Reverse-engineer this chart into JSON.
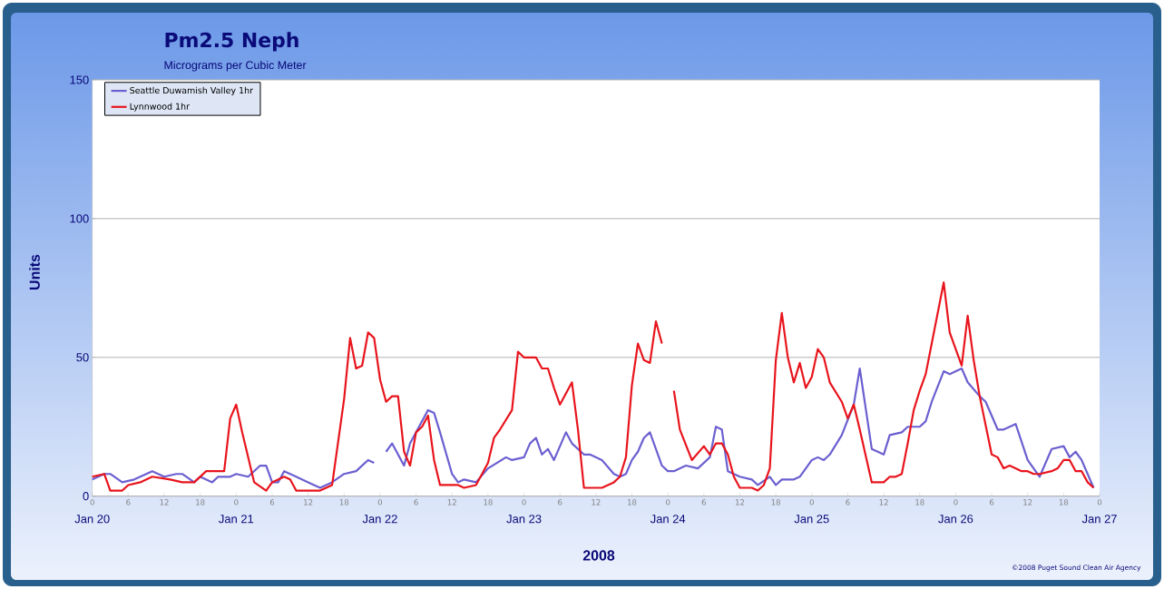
{
  "chart_data": {
    "type": "line",
    "title": "Pm2.5 Neph",
    "subtitle": "Micrograms per Cubic Meter",
    "xlabel": "2008",
    "ylabel": "Units",
    "annotations": [
      "©2008 Puget Sound Clean Air Agency",
      "Jan 20",
      "Jan 21",
      "Jan 22",
      "Jan 23",
      "Jan 24",
      "Jan 25",
      "Jan 26",
      "Jan 27"
    ],
    "xlim": [
      "2008-01-20T00:00",
      "2008-01-27T00:00"
    ],
    "ylim": [
      0,
      150
    ],
    "yticks": [
      0,
      50,
      100,
      150
    ],
    "xticks": [
      {
        "value": "2008-01-20T00:00",
        "label": "0"
      },
      {
        "value": "2008-01-20T06:00",
        "label": "6"
      },
      {
        "value": "2008-01-20T12:00",
        "label": "12"
      },
      {
        "value": "2008-01-20T18:00",
        "label": "18"
      },
      {
        "value": "2008-01-21T00:00",
        "label": "0"
      },
      {
        "value": "2008-01-21T06:00",
        "label": "6"
      },
      {
        "value": "2008-01-21T12:00",
        "label": "12"
      },
      {
        "value": "2008-01-21T18:00",
        "label": "18"
      },
      {
        "value": "2008-01-22T00:00",
        "label": "0"
      },
      {
        "value": "2008-01-22T06:00",
        "label": "6"
      },
      {
        "value": "2008-01-22T12:00",
        "label": "12"
      },
      {
        "value": "2008-01-22T18:00",
        "label": "18"
      },
      {
        "value": "2008-01-23T00:00",
        "label": "0"
      },
      {
        "value": "2008-01-23T06:00",
        "label": "6"
      },
      {
        "value": "2008-01-23T12:00",
        "label": "12"
      },
      {
        "value": "2008-01-23T18:00",
        "label": "18"
      },
      {
        "value": "2008-01-24T00:00",
        "label": "0"
      },
      {
        "value": "2008-01-24T06:00",
        "label": "6"
      },
      {
        "value": "2008-01-24T12:00",
        "label": "12"
      },
      {
        "value": "2008-01-24T18:00",
        "label": "18"
      },
      {
        "value": "2008-01-25T00:00",
        "label": "0"
      },
      {
        "value": "2008-01-25T06:00",
        "label": "6"
      },
      {
        "value": "2008-01-25T12:00",
        "label": "12"
      },
      {
        "value": "2008-01-25T18:00",
        "label": "18"
      },
      {
        "value": "2008-01-26T00:00",
        "label": "0"
      },
      {
        "value": "2008-01-26T06:00",
        "label": "6"
      },
      {
        "value": "2008-01-26T12:00",
        "label": "12"
      },
      {
        "value": "2008-01-26T18:00",
        "label": "18"
      },
      {
        "value": "2008-01-27T00:00",
        "label": "0"
      }
    ],
    "grid": "y",
    "legend": "top left",
    "series": [
      {
        "name": "Seattle Duwamish Valley  1hr",
        "color": "#6b5fd0",
        "x": [
          "2008-01-20T00:00",
          "2008-01-20T02:00",
          "2008-01-20T03:00",
          "2008-01-20T05:00",
          "2008-01-20T07:00",
          "2008-01-20T10:00",
          "2008-01-20T12:00",
          "2008-01-20T14:00",
          "2008-01-20T15:00",
          "2008-01-20T17:00",
          "2008-01-20T18:00",
          "2008-01-20T20:00",
          "2008-01-20T21:00",
          "2008-01-20T23:00",
          "2008-01-21T00:00",
          "2008-01-21T02:00",
          "2008-01-21T04:00",
          "2008-01-21T05:00",
          "2008-01-21T06:00",
          "2008-01-21T07:00",
          "2008-01-21T08:00",
          "2008-01-21T10:00",
          "2008-01-21T12:00",
          "2008-01-21T14:00",
          "2008-01-21T16:00",
          "2008-01-21T18:00",
          "2008-01-21T20:00",
          "2008-01-21T22:00",
          "2008-01-21T23:00",
          "2008-01-22T00:00",
          "2008-01-22T01:00",
          "2008-01-22T02:00",
          "2008-01-22T04:00",
          "2008-01-22T05:00",
          "2008-01-22T06:00",
          "2008-01-22T08:00",
          "2008-01-22T09:00",
          "2008-01-22T10:00",
          "2008-01-22T12:00",
          "2008-01-22T13:00",
          "2008-01-22T14:00",
          "2008-01-22T16:00",
          "2008-01-22T18:00",
          "2008-01-22T21:00",
          "2008-01-22T22:00",
          "2008-01-23T00:00",
          "2008-01-23T01:00",
          "2008-01-23T02:00",
          "2008-01-23T03:00",
          "2008-01-23T04:00",
          "2008-01-23T05:00",
          "2008-01-23T07:00",
          "2008-01-23T08:00",
          "2008-01-23T10:00",
          "2008-01-23T11:00",
          "2008-01-23T13:00",
          "2008-01-23T15:00",
          "2008-01-23T16:00",
          "2008-01-23T17:00",
          "2008-01-23T18:00",
          "2008-01-23T19:00",
          "2008-01-23T20:00",
          "2008-01-23T21:00",
          "2008-01-23T22:00",
          "2008-01-23T23:00",
          "2008-01-24T00:00",
          "2008-01-24T01:00",
          "2008-01-24T03:00",
          "2008-01-24T05:00",
          "2008-01-24T07:00",
          "2008-01-24T08:00",
          "2008-01-24T09:00",
          "2008-01-24T10:00",
          "2008-01-24T12:00",
          "2008-01-24T14:00",
          "2008-01-24T15:00",
          "2008-01-24T17:00",
          "2008-01-24T18:00",
          "2008-01-24T19:00",
          "2008-01-24T21:00",
          "2008-01-24T22:00",
          "2008-01-25T00:00",
          "2008-01-25T01:00",
          "2008-01-25T02:00",
          "2008-01-25T03:00",
          "2008-01-25T05:00",
          "2008-01-25T07:00",
          "2008-01-25T08:00",
          "2008-01-25T10:00",
          "2008-01-25T12:00",
          "2008-01-25T13:00",
          "2008-01-25T15:00",
          "2008-01-25T16:00",
          "2008-01-25T18:00",
          "2008-01-25T19:00",
          "2008-01-25T20:00",
          "2008-01-25T22:00",
          "2008-01-25T23:00",
          "2008-01-26T01:00",
          "2008-01-26T02:00",
          "2008-01-26T04:00",
          "2008-01-26T05:00",
          "2008-01-26T07:00",
          "2008-01-26T08:00",
          "2008-01-26T10:00",
          "2008-01-26T12:00",
          "2008-01-26T14:00",
          "2008-01-26T16:00",
          "2008-01-26T18:00",
          "2008-01-26T19:00",
          "2008-01-26T20:00",
          "2008-01-26T21:00",
          "2008-01-26T23:00"
        ],
        "values": [
          6,
          8,
          8,
          5,
          6,
          9,
          7,
          8,
          8,
          5,
          7,
          5,
          7,
          7,
          8,
          7,
          11,
          11,
          5,
          5,
          9,
          7,
          5,
          3,
          5,
          8,
          9,
          13,
          12,
          null,
          16,
          19,
          11,
          19,
          23,
          31,
          30,
          23,
          8,
          5,
          6,
          5,
          10,
          14,
          13,
          14,
          19,
          21,
          15,
          17,
          13,
          23,
          19,
          15,
          15,
          13,
          8,
          7,
          8,
          13,
          16,
          21,
          23,
          17,
          11,
          9,
          9,
          11,
          10,
          14,
          25,
          24,
          9,
          7,
          6,
          4,
          7,
          4,
          6,
          6,
          7,
          13,
          14,
          13,
          15,
          22,
          33,
          46,
          17,
          15,
          22,
          23,
          25,
          25,
          27,
          34,
          45,
          44,
          46,
          41,
          36,
          34,
          24,
          24,
          26,
          13,
          7,
          17,
          18,
          14,
          16,
          13,
          3
        ]
      },
      {
        "name": "Lynnwood  1hr",
        "color": "#e8141c",
        "x": [
          "2008-01-20T00:00",
          "2008-01-20T02:00",
          "2008-01-20T03:00",
          "2008-01-20T05:00",
          "2008-01-20T06:00",
          "2008-01-20T08:00",
          "2008-01-20T10:00",
          "2008-01-20T13:00",
          "2008-01-20T15:00",
          "2008-01-20T17:00",
          "2008-01-20T19:00",
          "2008-01-20T20:00",
          "2008-01-20T22:00",
          "2008-01-20T23:00",
          "2008-01-21T00:00",
          "2008-01-21T01:00",
          "2008-01-21T03:00",
          "2008-01-21T05:00",
          "2008-01-21T06:00",
          "2008-01-21T08:00",
          "2008-01-21T09:00",
          "2008-01-21T10:00",
          "2008-01-21T12:00",
          "2008-01-21T14:00",
          "2008-01-21T16:00",
          "2008-01-21T18:00",
          "2008-01-21T19:00",
          "2008-01-21T20:00",
          "2008-01-21T21:00",
          "2008-01-21T22:00",
          "2008-01-21T23:00",
          "2008-01-22T00:00",
          "2008-01-22T01:00",
          "2008-01-22T02:00",
          "2008-01-22T03:00",
          "2008-01-22T04:00",
          "2008-01-22T05:00",
          "2008-01-22T06:00",
          "2008-01-22T07:00",
          "2008-01-22T08:00",
          "2008-01-22T09:00",
          "2008-01-22T10:00",
          "2008-01-22T12:00",
          "2008-01-22T13:00",
          "2008-01-22T14:00",
          "2008-01-22T16:00",
          "2008-01-22T18:00",
          "2008-01-22T19:00",
          "2008-01-22T20:00",
          "2008-01-22T22:00",
          "2008-01-22T23:00",
          "2008-01-23T00:00",
          "2008-01-23T01:00",
          "2008-01-23T02:00",
          "2008-01-23T03:00",
          "2008-01-23T04:00",
          "2008-01-23T05:00",
          "2008-01-23T06:00",
          "2008-01-23T08:00",
          "2008-01-23T09:00",
          "2008-01-23T10:00",
          "2008-01-23T12:00",
          "2008-01-23T13:00",
          "2008-01-23T15:00",
          "2008-01-23T16:00",
          "2008-01-23T17:00",
          "2008-01-23T18:00",
          "2008-01-23T19:00",
          "2008-01-23T20:00",
          "2008-01-23T21:00",
          "2008-01-23T22:00",
          "2008-01-23T23:00",
          "2008-01-24T00:00",
          "2008-01-24T01:00",
          "2008-01-24T02:00",
          "2008-01-24T04:00",
          "2008-01-24T06:00",
          "2008-01-24T07:00",
          "2008-01-24T08:00",
          "2008-01-24T09:00",
          "2008-01-24T10:00",
          "2008-01-24T11:00",
          "2008-01-24T12:00",
          "2008-01-24T14:00",
          "2008-01-24T15:00",
          "2008-01-24T16:00",
          "2008-01-24T17:00",
          "2008-01-24T18:00",
          "2008-01-24T19:00",
          "2008-01-24T20:00",
          "2008-01-24T21:00",
          "2008-01-24T22:00",
          "2008-01-24T23:00",
          "2008-01-25T00:00",
          "2008-01-25T01:00",
          "2008-01-25T02:00",
          "2008-01-25T03:00",
          "2008-01-25T05:00",
          "2008-01-25T06:00",
          "2008-01-25T07:00",
          "2008-01-25T08:00",
          "2008-01-25T10:00",
          "2008-01-25T11:00",
          "2008-01-25T12:00",
          "2008-01-25T13:00",
          "2008-01-25T14:00",
          "2008-01-25T15:00",
          "2008-01-25T16:00",
          "2008-01-25T17:00",
          "2008-01-25T18:00",
          "2008-01-25T19:00",
          "2008-01-25T20:00",
          "2008-01-25T22:00",
          "2008-01-25T23:00",
          "2008-01-26T01:00",
          "2008-01-26T02:00",
          "2008-01-26T03:00",
          "2008-01-26T04:00",
          "2008-01-26T06:00",
          "2008-01-26T07:00",
          "2008-01-26T08:00",
          "2008-01-26T09:00",
          "2008-01-26T11:00",
          "2008-01-26T12:00",
          "2008-01-26T13:00",
          "2008-01-26T14:00",
          "2008-01-26T16:00",
          "2008-01-26T17:00",
          "2008-01-26T18:00",
          "2008-01-26T19:00",
          "2008-01-26T20:00",
          "2008-01-26T21:00",
          "2008-01-26T22:00",
          "2008-01-26T23:00"
        ],
        "values": [
          7,
          8,
          2,
          2,
          4,
          5,
          7,
          6,
          5,
          5,
          9,
          9,
          9,
          28,
          33,
          23,
          5,
          2,
          5,
          7,
          6,
          2,
          2,
          2,
          4,
          35,
          57,
          46,
          47,
          59,
          57,
          42,
          34,
          36,
          36,
          16,
          11,
          23,
          25,
          29,
          13,
          4,
          4,
          4,
          3,
          4,
          12,
          21,
          24,
          31,
          52,
          50,
          50,
          50,
          46,
          46,
          39,
          33,
          41,
          24,
          3,
          3,
          3,
          5,
          7,
          14,
          40,
          55,
          49,
          48,
          63,
          55,
          null,
          38,
          24,
          13,
          18,
          15,
          19,
          19,
          15,
          7,
          3,
          3,
          2,
          4,
          10,
          49,
          66,
          50,
          41,
          48,
          39,
          43,
          53,
          50,
          41,
          34,
          28,
          33,
          24,
          5,
          5,
          5,
          7,
          7,
          8,
          19,
          31,
          38,
          44,
          55,
          77,
          59,
          47,
          65,
          49,
          36,
          15,
          14,
          10,
          11,
          9,
          9,
          8,
          8,
          9,
          10,
          13,
          13,
          9,
          9,
          5,
          3
        ]
      }
    ]
  }
}
